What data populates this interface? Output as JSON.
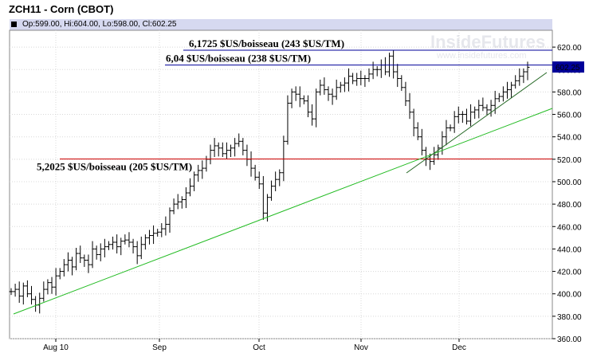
{
  "header": {
    "title": "ZCH11 - Corn (CBOT)",
    "ohlc": "Op:599.00, Hi:604.00, Lo:598.00, Cl:602.25"
  },
  "watermark": {
    "brand": "InsideFutures",
    "url": "www.insidefutures.com"
  },
  "colors": {
    "background": "#ffffff",
    "header_band": "#d6d9f0",
    "bars": "#000000",
    "support_line": "#cc0000",
    "resistance_lines": "#000099",
    "trend_long": "#22bb22",
    "trend_short": "#226622",
    "last_price_badge": "#000099"
  },
  "chart_data": {
    "type": "ohlc",
    "x_tick_labels": [
      "Aug 10",
      "Sep",
      "Oct",
      "Nov",
      "Dec"
    ],
    "y_tick_labels": [
      "360.00",
      "380.00",
      "400.00",
      "420.00",
      "440.00",
      "460.00",
      "480.00",
      "500.00",
      "520.00",
      "540.00",
      "560.00",
      "580.00",
      "600.00",
      "620.00"
    ],
    "ylim": [
      360,
      635
    ],
    "last_price_label": "602.25",
    "grid": true,
    "annotations": [
      {
        "text": "6,1725 $US/boisseau (243 $US/TM)",
        "price": 617.25
      },
      {
        "text": "6,04 $US/boisseau (238 $US/TM)",
        "price": 604
      },
      {
        "text": "5,2025 $US/boisseau (205 $US/TM)",
        "price": 520.25
      }
    ],
    "closes": [
      402,
      404,
      398,
      407,
      400,
      395,
      390,
      396,
      404,
      410,
      406,
      416,
      420,
      426,
      430,
      424,
      436,
      432,
      430,
      426,
      440,
      435,
      440,
      442,
      444,
      446,
      442,
      447,
      448,
      446,
      442,
      434,
      444,
      450,
      452,
      454,
      455,
      458,
      462,
      474,
      480,
      482,
      484,
      490,
      496,
      506,
      510,
      512,
      520,
      528,
      532,
      530,
      525,
      528,
      530,
      534,
      536,
      528,
      520,
      512,
      504,
      498,
      472,
      486,
      496,
      502,
      508,
      536,
      570,
      580,
      578,
      574,
      572,
      562,
      556,
      580,
      586,
      582,
      578,
      576,
      584,
      586,
      588,
      594,
      590,
      592,
      592,
      592,
      596,
      600,
      600,
      604,
      598,
      612,
      598,
      592,
      584,
      572,
      562,
      548,
      540,
      528,
      520,
      518,
      524,
      530,
      540,
      548,
      548,
      558,
      560,
      560,
      554,
      562,
      564,
      568,
      566,
      564,
      568,
      574,
      576,
      580,
      582,
      586,
      590,
      594,
      598,
      602
    ]
  }
}
